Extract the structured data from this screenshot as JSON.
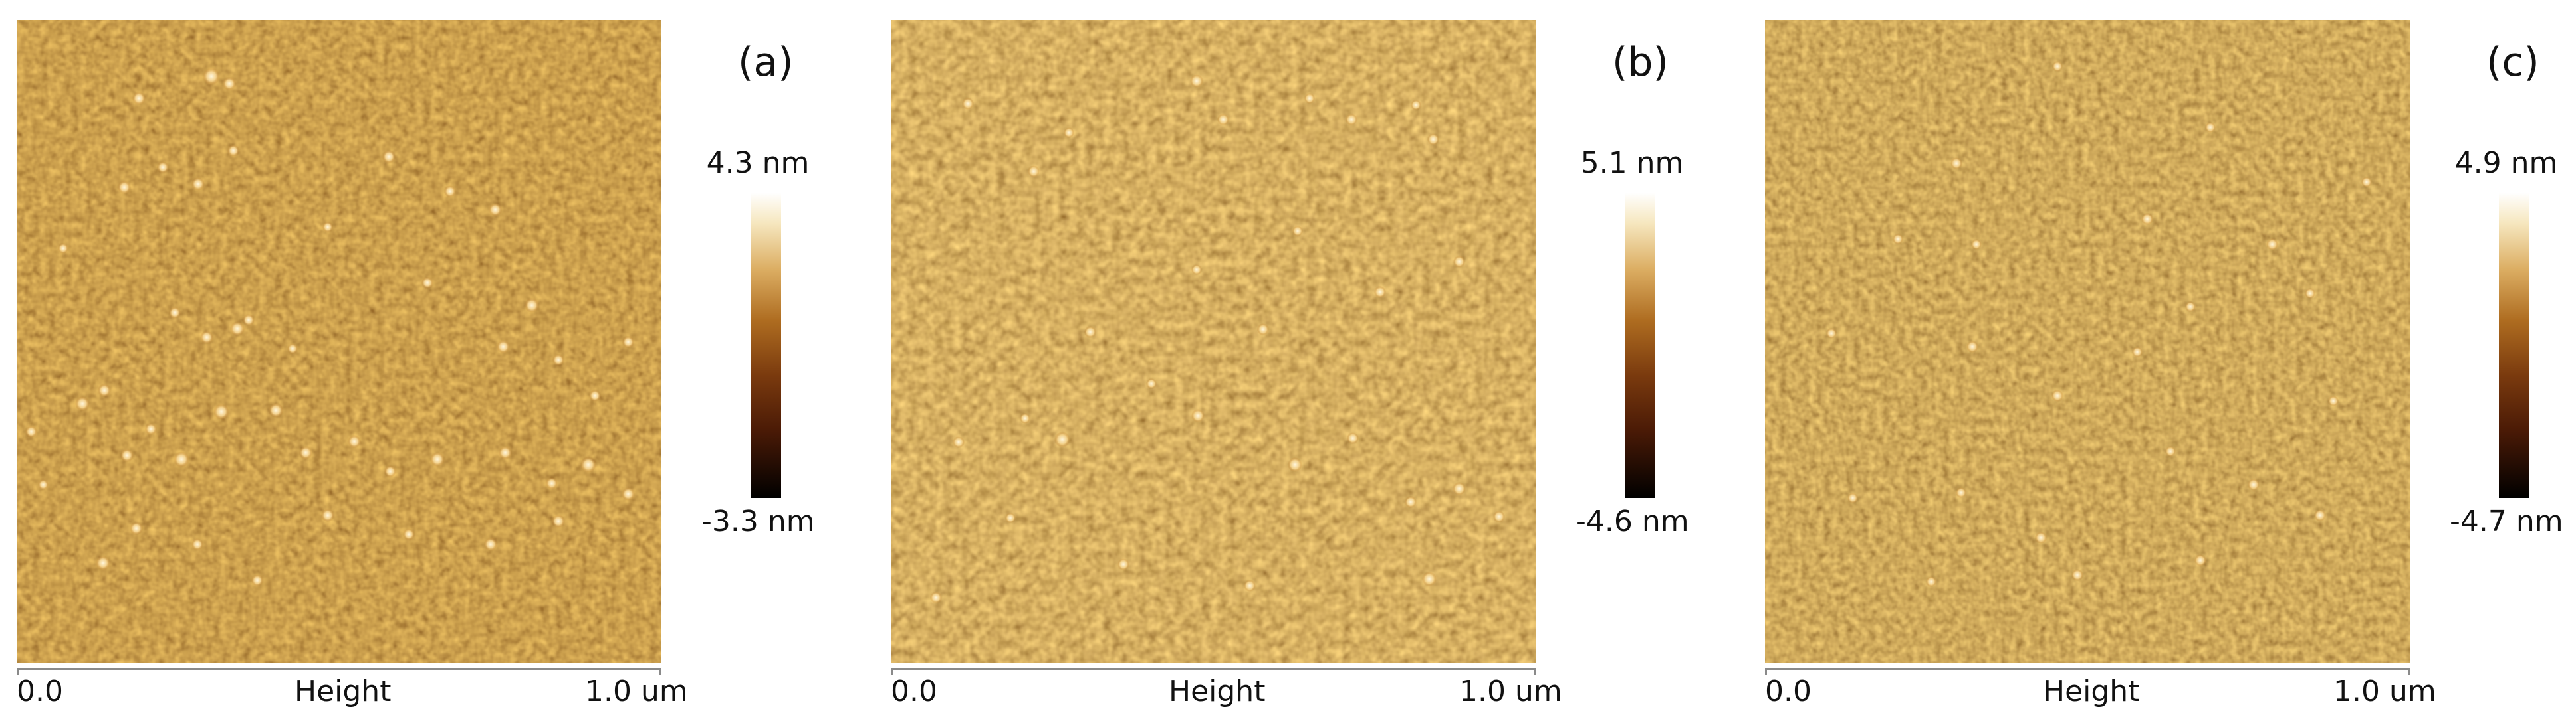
{
  "colors": {
    "afm_dark": "#3a1503",
    "afm_mid": "#8b4a12",
    "afm_light": "#d89a4a",
    "afm_highlight": "#fff6dc",
    "axis": "#8a8a8a"
  },
  "panels": [
    {
      "label": "(a)",
      "scale_max": "4.3 nm",
      "scale_min": "-3.3 nm",
      "axis_start": "0.0",
      "axis_title": "Height",
      "axis_end": "1.0 um"
    },
    {
      "label": "(b)",
      "scale_max": "5.1 nm",
      "scale_min": "-4.6 nm",
      "axis_start": "0.0",
      "axis_title": "Height",
      "axis_end": "1.0 um"
    },
    {
      "label": "(c)",
      "scale_max": "4.9 nm",
      "scale_min": "-4.7 nm",
      "axis_start": "0.0",
      "axis_title": "Height",
      "axis_end": "1.0 um"
    }
  ]
}
